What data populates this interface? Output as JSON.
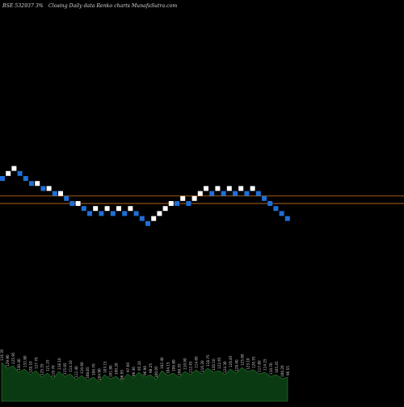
{
  "header": {
    "symbol": "BSE 532937 3%",
    "subtitle": "Closing Daily data  Renko  charts MunafaSutra.com"
  },
  "chart_data": {
    "type": "renko",
    "brick_percent": 3,
    "bricks": [
      {
        "col": 0,
        "row": 0,
        "dir": "down"
      },
      {
        "col": 1,
        "row": 1,
        "dir": "up"
      },
      {
        "col": 2,
        "row": 2,
        "dir": "up"
      },
      {
        "col": 3,
        "row": 1,
        "dir": "down"
      },
      {
        "col": 4,
        "row": 0,
        "dir": "down"
      },
      {
        "col": 5,
        "row": -1,
        "dir": "down"
      },
      {
        "col": 6,
        "row": -1,
        "dir": "up"
      },
      {
        "col": 7,
        "row": -2,
        "dir": "down"
      },
      {
        "col": 8,
        "row": -2,
        "dir": "up"
      },
      {
        "col": 9,
        "row": -3,
        "dir": "down"
      },
      {
        "col": 10,
        "row": -3,
        "dir": "up"
      },
      {
        "col": 11,
        "row": -4,
        "dir": "down"
      },
      {
        "col": 12,
        "row": -5,
        "dir": "down"
      },
      {
        "col": 13,
        "row": -5,
        "dir": "up"
      },
      {
        "col": 14,
        "row": -6,
        "dir": "down"
      },
      {
        "col": 15,
        "row": -7,
        "dir": "down"
      },
      {
        "col": 16,
        "row": -6,
        "dir": "up"
      },
      {
        "col": 17,
        "row": -7,
        "dir": "down"
      },
      {
        "col": 18,
        "row": -6,
        "dir": "up"
      },
      {
        "col": 19,
        "row": -7,
        "dir": "down"
      },
      {
        "col": 20,
        "row": -6,
        "dir": "up"
      },
      {
        "col": 21,
        "row": -7,
        "dir": "down"
      },
      {
        "col": 22,
        "row": -6,
        "dir": "up"
      },
      {
        "col": 23,
        "row": -7,
        "dir": "down"
      },
      {
        "col": 24,
        "row": -8,
        "dir": "down"
      },
      {
        "col": 25,
        "row": -9,
        "dir": "down"
      },
      {
        "col": 26,
        "row": -8,
        "dir": "up"
      },
      {
        "col": 27,
        "row": -7,
        "dir": "up"
      },
      {
        "col": 28,
        "row": -6,
        "dir": "up"
      },
      {
        "col": 29,
        "row": -5,
        "dir": "up"
      },
      {
        "col": 30,
        "row": -5,
        "dir": "down"
      },
      {
        "col": 31,
        "row": -4,
        "dir": "up"
      },
      {
        "col": 32,
        "row": -5,
        "dir": "down"
      },
      {
        "col": 33,
        "row": -4,
        "dir": "up"
      },
      {
        "col": 34,
        "row": -3,
        "dir": "up"
      },
      {
        "col": 35,
        "row": -2,
        "dir": "up"
      },
      {
        "col": 36,
        "row": -3,
        "dir": "down"
      },
      {
        "col": 37,
        "row": -2,
        "dir": "up"
      },
      {
        "col": 38,
        "row": -3,
        "dir": "down"
      },
      {
        "col": 39,
        "row": -2,
        "dir": "up"
      },
      {
        "col": 40,
        "row": -3,
        "dir": "down"
      },
      {
        "col": 41,
        "row": -2,
        "dir": "up"
      },
      {
        "col": 42,
        "row": -3,
        "dir": "down"
      },
      {
        "col": 43,
        "row": -2,
        "dir": "up"
      },
      {
        "col": 44,
        "row": -3,
        "dir": "down"
      },
      {
        "col": 45,
        "row": -4,
        "dir": "down"
      },
      {
        "col": 46,
        "row": -5,
        "dir": "down"
      },
      {
        "col": 47,
        "row": -6,
        "dir": "down"
      },
      {
        "col": 48,
        "row": -7,
        "dir": "down"
      },
      {
        "col": 49,
        "row": -8,
        "dir": "down"
      }
    ],
    "reference_lines": [
      {
        "row": -3.5,
        "color": "#b5651d"
      },
      {
        "row": -5.0,
        "color": "#b5651d"
      }
    ],
    "volume": {
      "profile": [
        48,
        41,
        44,
        36,
        40,
        33,
        38,
        30,
        35,
        28,
        37,
        31,
        34,
        27,
        32,
        26,
        30,
        24,
        33,
        28,
        31,
        25,
        34,
        29,
        36,
        30,
        33,
        27,
        38,
        32,
        35,
        30,
        37,
        33,
        39,
        34,
        41,
        36,
        38,
        33,
        40,
        35,
        42,
        37,
        39,
        34,
        36,
        31,
        33,
        28,
        30
      ],
      "labels": [
        "116.35",
        "129.90",
        "125.95",
        "130.40",
        "132.80",
        "128.10",
        "127.70",
        "125.35",
        "121.25",
        "119.70",
        "118.10",
        "115.05",
        "114.10",
        "112.40",
        "110.60",
        "108.85",
        "106.70",
        "104.90",
        "103.15",
        "101.80",
        "100.20",
        "98.95",
        "97.60",
        "96.30",
        "95.10",
        "96.90",
        "98.25",
        "100.05",
        "102.40",
        "104.15",
        "106.80",
        "108.35",
        "110.90",
        "112.45",
        "114.60",
        "116.20",
        "118.75",
        "120.10",
        "122.65",
        "124.30",
        "126.85",
        "128.40",
        "125.60",
        "123.10",
        "120.55",
        "117.80",
        "114.25",
        "110.70",
        "105.45",
        "100.20",
        "96.55"
      ],
      "fill_color": "#0a3a12",
      "stroke_color": "#2e7d32"
    },
    "colors": {
      "up_brick": "#ffffff",
      "down_brick": "#1f6fd6",
      "background": "#000000",
      "label": "#cccccc"
    }
  }
}
